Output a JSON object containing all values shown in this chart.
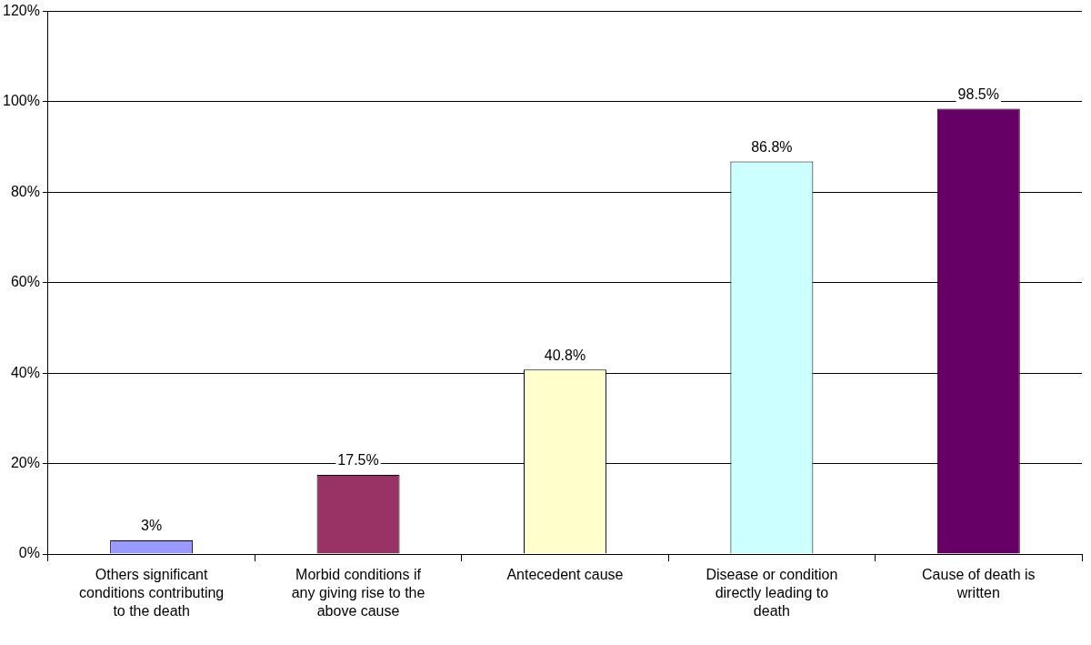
{
  "chart_data": {
    "type": "bar",
    "categories": [
      "Others significant conditions contributing to the death",
      "Morbid conditions if any giving rise to the above cause",
      "Antecedent cause",
      "Disease or condition directly leading to death",
      "Cause of death is written"
    ],
    "values": [
      3,
      17.5,
      40.8,
      86.8,
      98.5
    ],
    "colors": [
      "#9999ff",
      "#993366",
      "#ffffcc",
      "#ccffff",
      "#660066"
    ],
    "value_labels": [
      "3%",
      "17.5%",
      "40.8%",
      "86.8%",
      "98.5%"
    ],
    "ylim": [
      0,
      120
    ],
    "yticks": [
      {
        "value": 0,
        "label": "0%"
      },
      {
        "value": 20,
        "label": "20%"
      },
      {
        "value": 40,
        "label": "40%"
      },
      {
        "value": 60,
        "label": "60%"
      },
      {
        "value": 80,
        "label": "80%"
      },
      {
        "value": 100,
        "label": "100%"
      },
      {
        "value": 120,
        "label": "120%"
      }
    ],
    "grid": "y",
    "legend": false
  }
}
